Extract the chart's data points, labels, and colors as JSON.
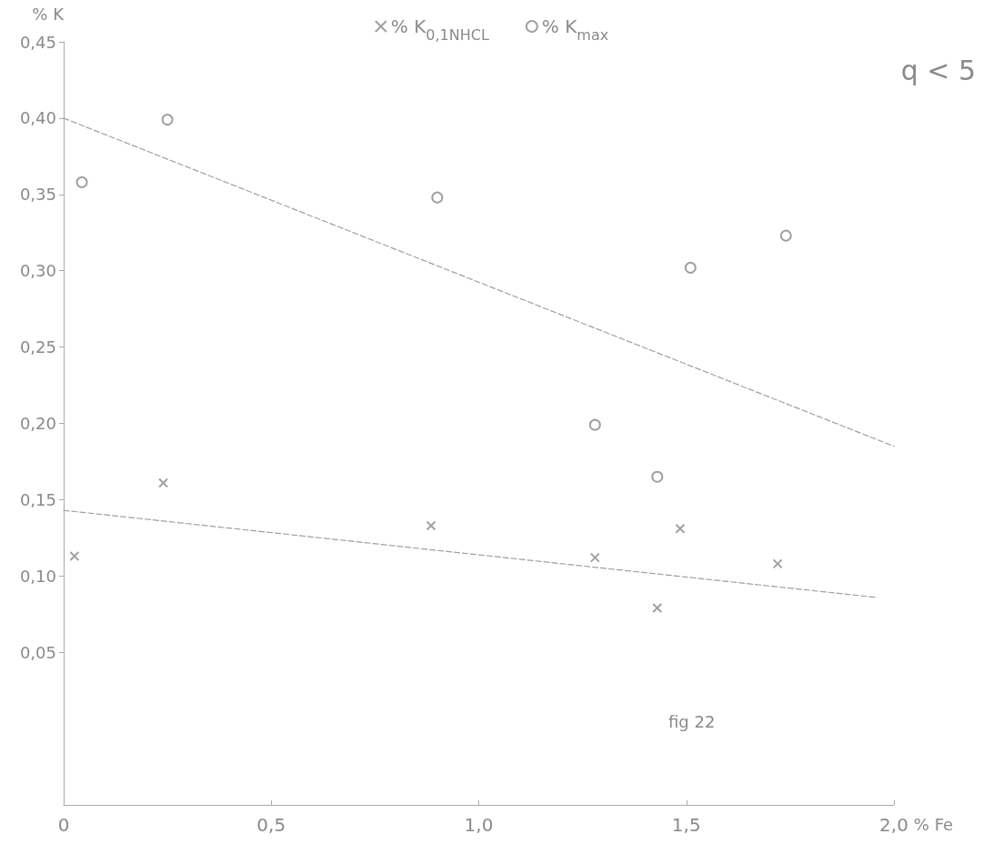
{
  "chart_data": {
    "type": "scatter",
    "xlabel": "% Fe",
    "ylabel": "% K",
    "xlim": [
      0,
      2.0
    ],
    "ylim": [
      -0.05,
      0.45
    ],
    "xticks": [
      0,
      {
        "value": 0.5,
        "label": "0,5"
      },
      {
        "value": 1.0,
        "label": "1,0"
      },
      {
        "value": 1.5,
        "label": "1,5"
      },
      {
        "value": 2.0,
        "label": "2,0"
      }
    ],
    "yticks": [
      {
        "value": 0.05,
        "label": "0,05"
      },
      {
        "value": 0.1,
        "label": "0,10"
      },
      {
        "value": 0.15,
        "label": "0,15"
      },
      {
        "value": 0.2,
        "label": "0,20"
      },
      {
        "value": 0.25,
        "label": "0,25"
      },
      {
        "value": 0.3,
        "label": "0,30"
      },
      {
        "value": 0.35,
        "label": "0,35"
      },
      {
        "value": 0.4,
        "label": "0,40"
      },
      {
        "value": 0.45,
        "label": "0,45"
      }
    ],
    "grid": false,
    "legend": "top",
    "series": [
      {
        "name": "% K$_{0,1NHCL}$",
        "marker": "cross",
        "color": "#8a8a8a",
        "x": [
          0.026,
          0.24,
          0.885,
          1.28,
          1.43,
          1.485,
          1.72
        ],
        "values": [
          0.113,
          0.161,
          0.133,
          0.112,
          0.079,
          0.131,
          0.108
        ]
      },
      {
        "name": "% K$_{max}$",
        "marker": "circle",
        "color": "#8a8a8a",
        "x": [
          0.044,
          0.25,
          0.9,
          1.28,
          1.43,
          1.51,
          1.74
        ],
        "values": [
          0.358,
          0.399,
          0.348,
          0.199,
          0.165,
          0.302,
          0.323
        ]
      },
      {
        "type": "line",
        "line_style": "dashed",
        "marker": "none",
        "color": "#a0a0a0",
        "x": [
          0,
          2.0
        ],
        "values": [
          0.4,
          0.185
        ]
      },
      {
        "type": "line",
        "line_style": "dashed",
        "marker": "none",
        "color": "#a0a0a0",
        "x": [
          0,
          1.956
        ],
        "values": [
          0.143,
          0.086
        ]
      }
    ],
    "annotations": [
      "q < 5",
      "fig 22"
    ]
  }
}
